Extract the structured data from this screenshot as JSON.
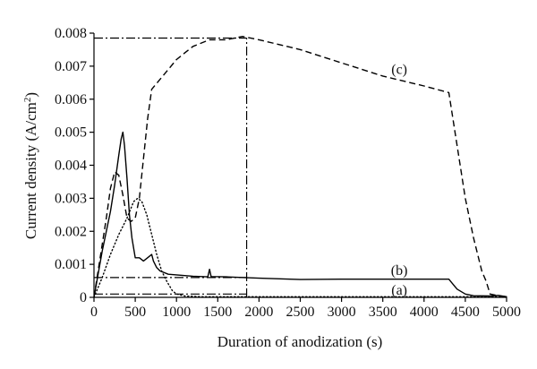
{
  "chart_data": {
    "type": "line",
    "xlabel": "Duration of anodization (s)",
    "ylabel_main": "Current density (A/cm",
    "ylabel_sup": "2",
    "ylabel_close": ")",
    "xlim": [
      0,
      5000
    ],
    "ylim": [
      0,
      0.008
    ],
    "x_ticks": [
      "0",
      "500",
      "1000",
      "1500",
      "2000",
      "2500",
      "3000",
      "3500",
      "4000",
      "4500",
      "5000"
    ],
    "y_ticks": [
      "0",
      "0.001",
      "0.002",
      "0.003",
      "0.004",
      "0.005",
      "0.006",
      "0.007",
      "0.008"
    ],
    "grid": false,
    "series": [
      {
        "name": "(a)",
        "style": "dotted",
        "x": [
          0,
          100,
          200,
          300,
          400,
          480,
          530,
          580,
          640,
          700,
          760,
          820,
          880,
          950,
          1000,
          1100,
          1200,
          1300,
          5000
        ],
        "y": [
          0,
          0.0006,
          0.0013,
          0.0019,
          0.0024,
          0.0029,
          0.003,
          0.0029,
          0.0025,
          0.0019,
          0.0013,
          0.0008,
          0.0005,
          0.0002,
          0.0001,
          4e-05,
          3e-05,
          2e-05,
          2e-05
        ]
      },
      {
        "name": "(b)",
        "style": "solid",
        "x": [
          0,
          50,
          100,
          150,
          200,
          250,
          300,
          330,
          350,
          370,
          400,
          430,
          460,
          500,
          550,
          600,
          650,
          700,
          720,
          760,
          800,
          900,
          1000,
          1200,
          1380,
          1400,
          1420,
          1600,
          2000,
          2500,
          3000,
          3500,
          4000,
          4300,
          4350,
          4400,
          4500,
          4600,
          4800,
          4900,
          5000
        ],
        "y": [
          0,
          0.0007,
          0.0014,
          0.002,
          0.0026,
          0.0034,
          0.0043,
          0.0048,
          0.005,
          0.0046,
          0.0036,
          0.0025,
          0.0018,
          0.0012,
          0.0012,
          0.0011,
          0.0012,
          0.0013,
          0.0011,
          0.0009,
          0.0008,
          0.0007,
          0.00068,
          0.00064,
          0.00062,
          0.00085,
          0.00063,
          0.00062,
          0.00058,
          0.00054,
          0.00055,
          0.00055,
          0.00055,
          0.00055,
          0.0004,
          0.00025,
          0.0001,
          5e-05,
          4e-05,
          6e-05,
          2e-05
        ]
      },
      {
        "name": "(c)",
        "style": "dashed",
        "x": [
          0,
          50,
          100,
          150,
          200,
          250,
          300,
          350,
          400,
          450,
          500,
          550,
          600,
          650,
          700,
          800,
          900,
          1000,
          1100,
          1200,
          1400,
          1600,
          1800,
          2000,
          2500,
          3000,
          3500,
          4000,
          4300,
          4400,
          4500,
          4600,
          4700,
          4750,
          4800,
          4900,
          5000
        ],
        "y": [
          0,
          0.0008,
          0.0016,
          0.0024,
          0.0033,
          0.0038,
          0.0037,
          0.0031,
          0.0024,
          0.0023,
          0.0024,
          0.003,
          0.0042,
          0.0054,
          0.0063,
          0.0066,
          0.0069,
          0.0072,
          0.0074,
          0.0076,
          0.0078,
          0.0078,
          0.0079,
          0.0078,
          0.0075,
          0.0071,
          0.0067,
          0.0064,
          0.0062,
          0.0046,
          0.003,
          0.0018,
          0.0008,
          0.0005,
          0.0001,
          5e-05,
          2e-05
        ]
      }
    ],
    "reference_lines": {
      "vertical_x": 1850,
      "horizontal": [
        {
          "y": 0.00785,
          "x_from": 0,
          "x_to": 1850
        },
        {
          "y": 0.0006,
          "x_from": 0,
          "x_to": 1850
        },
        {
          "y": 0.0001,
          "x_from": 0,
          "x_to": 1850
        }
      ]
    },
    "annotations": [
      {
        "text": "(c)",
        "x": 3700,
        "y": 0.0069
      },
      {
        "text": "(b)",
        "x": 3700,
        "y": 0.00082
      },
      {
        "text": "(a)",
        "x": 3700,
        "y": 0.00022
      }
    ]
  }
}
